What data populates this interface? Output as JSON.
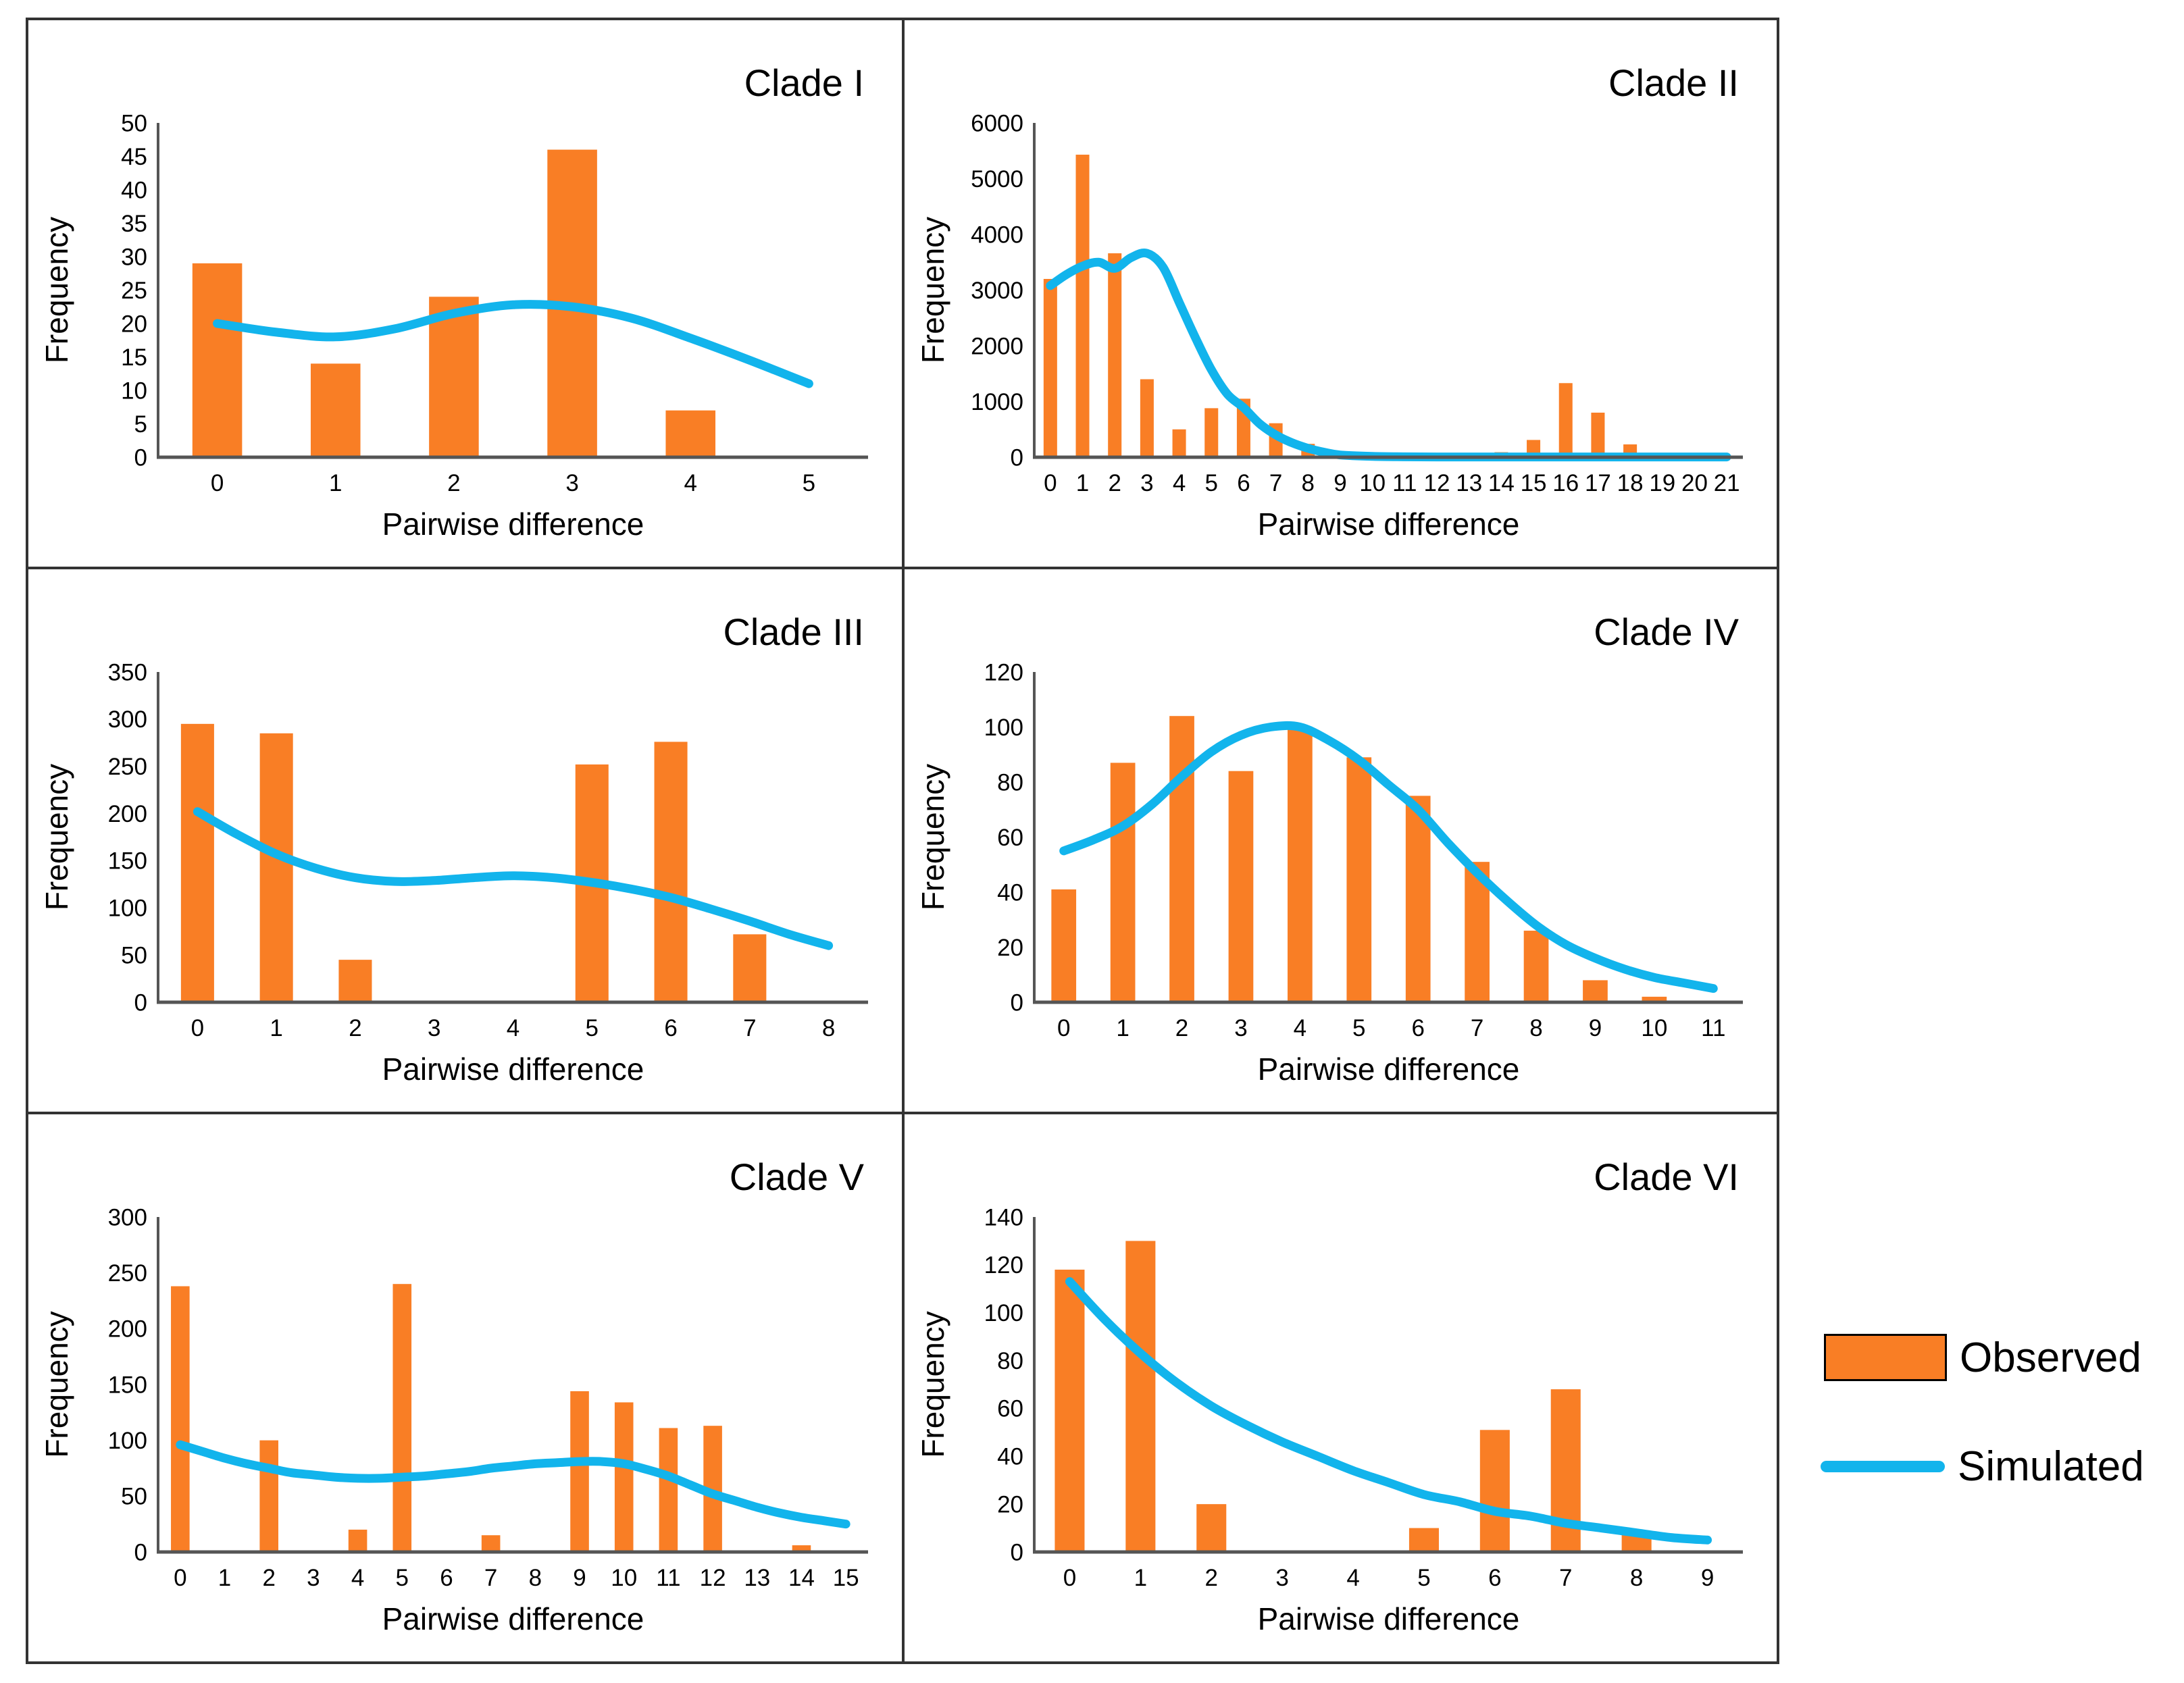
{
  "colors": {
    "bar": "#F97E25",
    "line": "#12B4EC",
    "axis": "#555555",
    "panel_border": "#333333",
    "text": "#000000"
  },
  "legend": {
    "observed_label": "Observed",
    "simulated_label": "Simulated"
  },
  "chart_data": [
    {
      "type": "bar",
      "title": "Clade I",
      "xlabel": "Pairwise difference",
      "ylabel": "Frequency",
      "ylim": [
        0,
        50
      ],
      "ystep": 5,
      "grid": false,
      "categories": [
        0,
        1,
        2,
        3,
        4,
        5
      ],
      "series": [
        {
          "name": "Observed",
          "type": "bar",
          "values": [
            29,
            14,
            24,
            46,
            7,
            0
          ]
        },
        {
          "name": "Simulated",
          "type": "line",
          "points": [
            [
              0,
              20
            ],
            [
              0.5,
              18.7
            ],
            [
              1,
              18
            ],
            [
              1.5,
              19.2
            ],
            [
              2,
              21.5
            ],
            [
              2.5,
              22.8
            ],
            [
              3,
              22.5
            ],
            [
              3.5,
              20.8
            ],
            [
              4,
              17.8
            ],
            [
              4.5,
              14.5
            ],
            [
              5,
              11
            ]
          ]
        }
      ]
    },
    {
      "type": "bar",
      "title": "Clade II",
      "xlabel": "Pairwise difference",
      "ylabel": "Frequency",
      "ylim": [
        0,
        6000
      ],
      "ystep": 1000,
      "grid": false,
      "categories": [
        0,
        1,
        2,
        3,
        4,
        5,
        6,
        7,
        8,
        9,
        10,
        11,
        12,
        13,
        14,
        15,
        16,
        17,
        18,
        19,
        20,
        21
      ],
      "series": [
        {
          "name": "Observed",
          "type": "bar",
          "values": [
            3200,
            5430,
            3660,
            1400,
            500,
            880,
            1050,
            610,
            240,
            0,
            0,
            0,
            0,
            0,
            90,
            310,
            1330,
            800,
            230,
            0,
            0,
            0
          ]
        },
        {
          "name": "Simulated",
          "type": "line",
          "points": [
            [
              0,
              3080
            ],
            [
              0.5,
              3280
            ],
            [
              1,
              3430
            ],
            [
              1.5,
              3500
            ],
            [
              2,
              3390
            ],
            [
              2.5,
              3580
            ],
            [
              3,
              3660
            ],
            [
              3.5,
              3410
            ],
            [
              4,
              2780
            ],
            [
              4.5,
              2150
            ],
            [
              5,
              1570
            ],
            [
              5.5,
              1130
            ],
            [
              6,
              890
            ],
            [
              6.5,
              600
            ],
            [
              7,
              400
            ],
            [
              7.5,
              260
            ],
            [
              8,
              160
            ],
            [
              8.5,
              90
            ],
            [
              9,
              40
            ],
            [
              10,
              15
            ],
            [
              11,
              8
            ],
            [
              12,
              5
            ],
            [
              13,
              5
            ],
            [
              14,
              5
            ],
            [
              15,
              5
            ],
            [
              16,
              5
            ],
            [
              17,
              5
            ],
            [
              18,
              5
            ],
            [
              19,
              5
            ],
            [
              20,
              5
            ],
            [
              21,
              5
            ]
          ]
        }
      ]
    },
    {
      "type": "bar",
      "title": "Clade III",
      "xlabel": "Pairwise difference",
      "ylabel": "Frequency",
      "ylim": [
        0,
        350
      ],
      "ystep": 50,
      "grid": false,
      "categories": [
        0,
        1,
        2,
        3,
        4,
        5,
        6,
        7,
        8
      ],
      "series": [
        {
          "name": "Observed",
          "type": "bar",
          "values": [
            295,
            285,
            45,
            0,
            0,
            252,
            276,
            72,
            0
          ]
        },
        {
          "name": "Simulated",
          "type": "line",
          "points": [
            [
              0,
              202
            ],
            [
              0.5,
              178
            ],
            [
              1,
              157
            ],
            [
              1.5,
              142
            ],
            [
              2,
              132
            ],
            [
              2.5,
              128
            ],
            [
              3,
              129
            ],
            [
              3.5,
              132
            ],
            [
              4,
              134
            ],
            [
              4.5,
              132
            ],
            [
              5,
              127
            ],
            [
              5.5,
              120
            ],
            [
              6,
              111
            ],
            [
              6.5,
              99
            ],
            [
              7,
              86
            ],
            [
              7.5,
              72
            ],
            [
              8,
              60
            ]
          ]
        }
      ]
    },
    {
      "type": "bar",
      "title": "Clade IV",
      "xlabel": "Pairwise difference",
      "ylabel": "Frequency",
      "ylim": [
        0,
        120
      ],
      "ystep": 20,
      "grid": false,
      "categories": [
        0,
        1,
        2,
        3,
        4,
        5,
        6,
        7,
        8,
        9,
        10,
        11
      ],
      "series": [
        {
          "name": "Observed",
          "type": "bar",
          "values": [
            41,
            87,
            104,
            84,
            100,
            89,
            75,
            51,
            26,
            8,
            2,
            0
          ]
        },
        {
          "name": "Simulated",
          "type": "line",
          "points": [
            [
              0,
              55
            ],
            [
              0.5,
              59
            ],
            [
              1,
              64
            ],
            [
              1.5,
              72
            ],
            [
              2,
              82
            ],
            [
              2.5,
              91
            ],
            [
              3,
              97
            ],
            [
              3.5,
              100
            ],
            [
              4,
              100
            ],
            [
              4.5,
              95
            ],
            [
              5,
              88
            ],
            [
              5.5,
              79
            ],
            [
              6,
              70
            ],
            [
              6.5,
              58
            ],
            [
              7,
              47
            ],
            [
              7.5,
              37
            ],
            [
              8,
              28
            ],
            [
              8.5,
              21
            ],
            [
              9,
              16
            ],
            [
              9.5,
              12
            ],
            [
              10,
              9
            ],
            [
              10.5,
              7
            ],
            [
              11,
              5
            ]
          ]
        }
      ]
    },
    {
      "type": "bar",
      "title": "Clade V",
      "xlabel": "Pairwise difference",
      "ylabel": "Frequency",
      "ylim": [
        0,
        300
      ],
      "ystep": 50,
      "grid": false,
      "categories": [
        0,
        1,
        2,
        3,
        4,
        5,
        6,
        7,
        8,
        9,
        10,
        11,
        12,
        13,
        14,
        15
      ],
      "series": [
        {
          "name": "Observed",
          "type": "bar",
          "values": [
            238,
            0,
            100,
            0,
            20,
            240,
            0,
            15,
            0,
            144,
            134,
            111,
            113,
            0,
            6,
            0
          ]
        },
        {
          "name": "Simulated",
          "type": "line",
          "points": [
            [
              0,
              96
            ],
            [
              0.5,
              90
            ],
            [
              1,
              84
            ],
            [
              1.5,
              79
            ],
            [
              2,
              75
            ],
            [
              2.5,
              71
            ],
            [
              3,
              69
            ],
            [
              3.5,
              67
            ],
            [
              4,
              66
            ],
            [
              4.5,
              66
            ],
            [
              5,
              67
            ],
            [
              5.5,
              68
            ],
            [
              6,
              70
            ],
            [
              6.5,
              72
            ],
            [
              7,
              75
            ],
            [
              7.5,
              77
            ],
            [
              8,
              79
            ],
            [
              8.5,
              80
            ],
            [
              9,
              81
            ],
            [
              9.5,
              81
            ],
            [
              10,
              79
            ],
            [
              10.5,
              74
            ],
            [
              11,
              68
            ],
            [
              11.5,
              60
            ],
            [
              12,
              52
            ],
            [
              12.5,
              46
            ],
            [
              13,
              40
            ],
            [
              13.5,
              35
            ],
            [
              14,
              31
            ],
            [
              14.5,
              28
            ],
            [
              15,
              25
            ]
          ]
        }
      ]
    },
    {
      "type": "bar",
      "title": "Clade VI",
      "xlabel": "Pairwise difference",
      "ylabel": "Frequency",
      "ylim": [
        0,
        140
      ],
      "ystep": 20,
      "grid": false,
      "categories": [
        0,
        1,
        2,
        3,
        4,
        5,
        6,
        7,
        8,
        9
      ],
      "series": [
        {
          "name": "Observed",
          "type": "bar",
          "values": [
            118,
            130,
            20,
            0,
            0,
            10,
            51,
            68,
            8,
            0
          ]
        },
        {
          "name": "Simulated",
          "type": "line",
          "points": [
            [
              0,
              113
            ],
            [
              0.5,
              97
            ],
            [
              1,
              83
            ],
            [
              1.5,
              71
            ],
            [
              2,
              61
            ],
            [
              2.5,
              53
            ],
            [
              3,
              46
            ],
            [
              3.5,
              40
            ],
            [
              4,
              34
            ],
            [
              4.5,
              29
            ],
            [
              5,
              24
            ],
            [
              5.5,
              21
            ],
            [
              6,
              17
            ],
            [
              6.5,
              15
            ],
            [
              7,
              12
            ],
            [
              7.5,
              10
            ],
            [
              8,
              8
            ],
            [
              8.5,
              6
            ],
            [
              9,
              5
            ]
          ]
        }
      ]
    }
  ]
}
